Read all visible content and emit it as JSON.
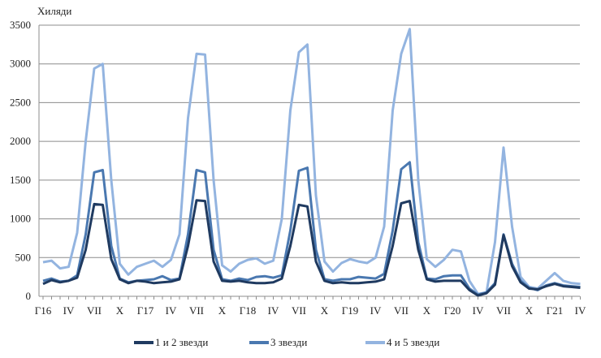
{
  "chart_data": {
    "type": "line",
    "title": "",
    "ylabel": "Хиляди",
    "xlabel": "",
    "ylim": [
      0,
      3500
    ],
    "yticks": [
      0,
      500,
      1000,
      1500,
      2000,
      2500,
      3000,
      3500
    ],
    "grid": true,
    "legend_position": "bottom",
    "x_tick_labels": [
      "Г16",
      "IV",
      "VII",
      "X",
      "Г17",
      "IV",
      "VII",
      "X",
      "Г18",
      "IV",
      "VII",
      "X",
      "Г19",
      "IV",
      "VII",
      "X",
      "Г20",
      "IV",
      "VII",
      "X",
      "Г21",
      "IV"
    ],
    "x_period": "monthly, January 2016 – April 2021",
    "series": [
      {
        "name": "1 и 2 звезди",
        "color": "#1f3a60",
        "values": [
          160,
          210,
          180,
          200,
          240,
          600,
          1190,
          1180,
          480,
          220,
          170,
          200,
          190,
          170,
          180,
          190,
          220,
          650,
          1240,
          1230,
          450,
          200,
          190,
          200,
          180,
          170,
          170,
          180,
          230,
          650,
          1180,
          1160,
          450,
          200,
          170,
          180,
          170,
          170,
          180,
          190,
          220,
          650,
          1200,
          1230,
          600,
          220,
          190,
          200,
          200,
          200,
          80,
          10,
          40,
          150,
          790,
          390,
          180,
          100,
          90,
          130,
          160,
          130,
          120,
          110
        ]
      },
      {
        "name": "3 звезди",
        "color": "#4a78b0",
        "values": [
          200,
          230,
          190,
          200,
          270,
          800,
          1600,
          1630,
          650,
          230,
          180,
          200,
          210,
          220,
          260,
          210,
          230,
          800,
          1630,
          1600,
          600,
          220,
          200,
          230,
          210,
          250,
          260,
          240,
          270,
          850,
          1620,
          1660,
          600,
          220,
          200,
          220,
          220,
          250,
          240,
          230,
          290,
          850,
          1640,
          1730,
          700,
          230,
          220,
          260,
          270,
          270,
          100,
          20,
          50,
          170,
          800,
          420,
          200,
          110,
          80,
          140,
          170,
          140,
          130,
          120
        ]
      },
      {
        "name": "4 и 5 звезди",
        "color": "#93b4e0",
        "values": [
          440,
          460,
          360,
          380,
          820,
          2000,
          2940,
          3000,
          1500,
          420,
          280,
          380,
          420,
          460,
          380,
          470,
          800,
          2300,
          3130,
          3120,
          1500,
          400,
          320,
          420,
          470,
          490,
          420,
          460,
          1000,
          2400,
          3150,
          3250,
          1300,
          450,
          320,
          430,
          480,
          450,
          430,
          500,
          900,
          2400,
          3130,
          3450,
          1500,
          480,
          380,
          470,
          600,
          580,
          200,
          30,
          50,
          700,
          1920,
          900,
          250,
          120,
          100,
          200,
          300,
          200,
          170,
          160
        ]
      }
    ]
  }
}
